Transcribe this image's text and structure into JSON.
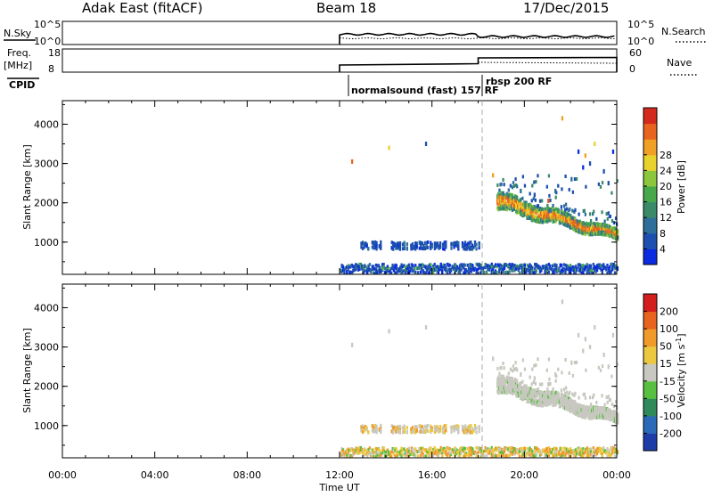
{
  "header": {
    "site": "Adak East (fitACF)",
    "beam": "Beam 18",
    "date": "17/Dec/2015"
  },
  "strip": {
    "nsky_label": "N.Sky",
    "nsky_ticks": [
      "10^5",
      "10^0"
    ],
    "nsearch_label": "N.Search",
    "nsearch_ticks": [
      "10^5",
      "10^0"
    ],
    "freq_label": "Freq.",
    "freq_unit": "[MHz]",
    "freq_ticks": [
      "18",
      "8"
    ],
    "nave_label": "Nave",
    "nave_ticks": [
      "60",
      "0"
    ],
    "cpid_label": "CPID",
    "cpid_modes": [
      "normalsound (fast) 157 RF",
      "rbsp 200 RF"
    ]
  },
  "chart_data": [
    {
      "type": "heatmap",
      "name": "power",
      "ylabel": "Slant Range [km]",
      "yticks": [
        "1000",
        "2000",
        "3000",
        "4000"
      ],
      "ylim": [
        180,
        4600
      ],
      "xlim": [
        0,
        24
      ],
      "colorbar": {
        "label": "Power [dB]",
        "ticks": [
          "4",
          "8",
          "12",
          "16",
          "20",
          "24",
          "28"
        ],
        "colors": [
          "#0a2be0",
          "#1d4fb0",
          "#2d6e9a",
          "#3a8a6a",
          "#46a84a",
          "#8cc63c",
          "#e8d22c",
          "#f0a024",
          "#e8641e",
          "#d42a1e"
        ]
      }
    },
    {
      "type": "heatmap",
      "name": "velocity",
      "ylabel": "Slant Range [km]",
      "yticks": [
        "1000",
        "2000",
        "3000",
        "4000"
      ],
      "ylim": [
        180,
        4600
      ],
      "xlim": [
        0,
        24
      ],
      "xlabel": "Time UT",
      "xticks": [
        "00:00",
        "04:00",
        "08:00",
        "12:00",
        "16:00",
        "20:00",
        "00:00"
      ],
      "colorbar": {
        "label": "Velocity [m s",
        "label_sup": "-1",
        "label_end": "]",
        "ticks": [
          "200",
          "100",
          "50",
          "15",
          "-15",
          "-50",
          "-100",
          "-200"
        ],
        "colors": [
          "#1e3ca8",
          "#2a6ab8",
          "#2e8a5a",
          "#58c040",
          "#c8c8c0",
          "#ecc840",
          "#f09a2a",
          "#e8641e",
          "#d41e1e"
        ]
      }
    }
  ]
}
